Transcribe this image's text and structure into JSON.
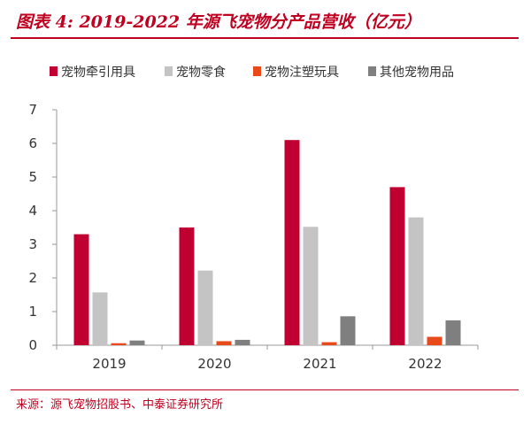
{
  "header": {
    "title": "图表 4:  2019-2022 年源飞宠物分产品营收（亿元）"
  },
  "footer": {
    "source": "来源：源飞宠物招股书、中泰证券研究所"
  },
  "chart_data": {
    "type": "bar",
    "title": "图表 4:  2019-2022 年源飞宠物分产品营收（亿元）",
    "xlabel": "",
    "ylabel": "",
    "categories": [
      "2019",
      "2020",
      "2021",
      "2022"
    ],
    "ylim": [
      0,
      7
    ],
    "yticks": [
      0,
      1,
      2,
      3,
      4,
      5,
      6,
      7
    ],
    "grid": false,
    "legend_position": "top",
    "series": [
      {
        "name": "宠物牵引用具",
        "color": "#c00030",
        "values": [
          3.3,
          3.5,
          6.1,
          4.7
        ]
      },
      {
        "name": "宠物零食",
        "color": "#c4c4c4",
        "values": [
          1.57,
          2.22,
          3.52,
          3.8
        ]
      },
      {
        "name": "宠物注塑玩具",
        "color": "#e84a1a",
        "values": [
          0.06,
          0.12,
          0.09,
          0.25
        ]
      },
      {
        "name": "其他宠物用品",
        "color": "#7f7f7f",
        "values": [
          0.14,
          0.16,
          0.86,
          0.74
        ]
      }
    ]
  }
}
